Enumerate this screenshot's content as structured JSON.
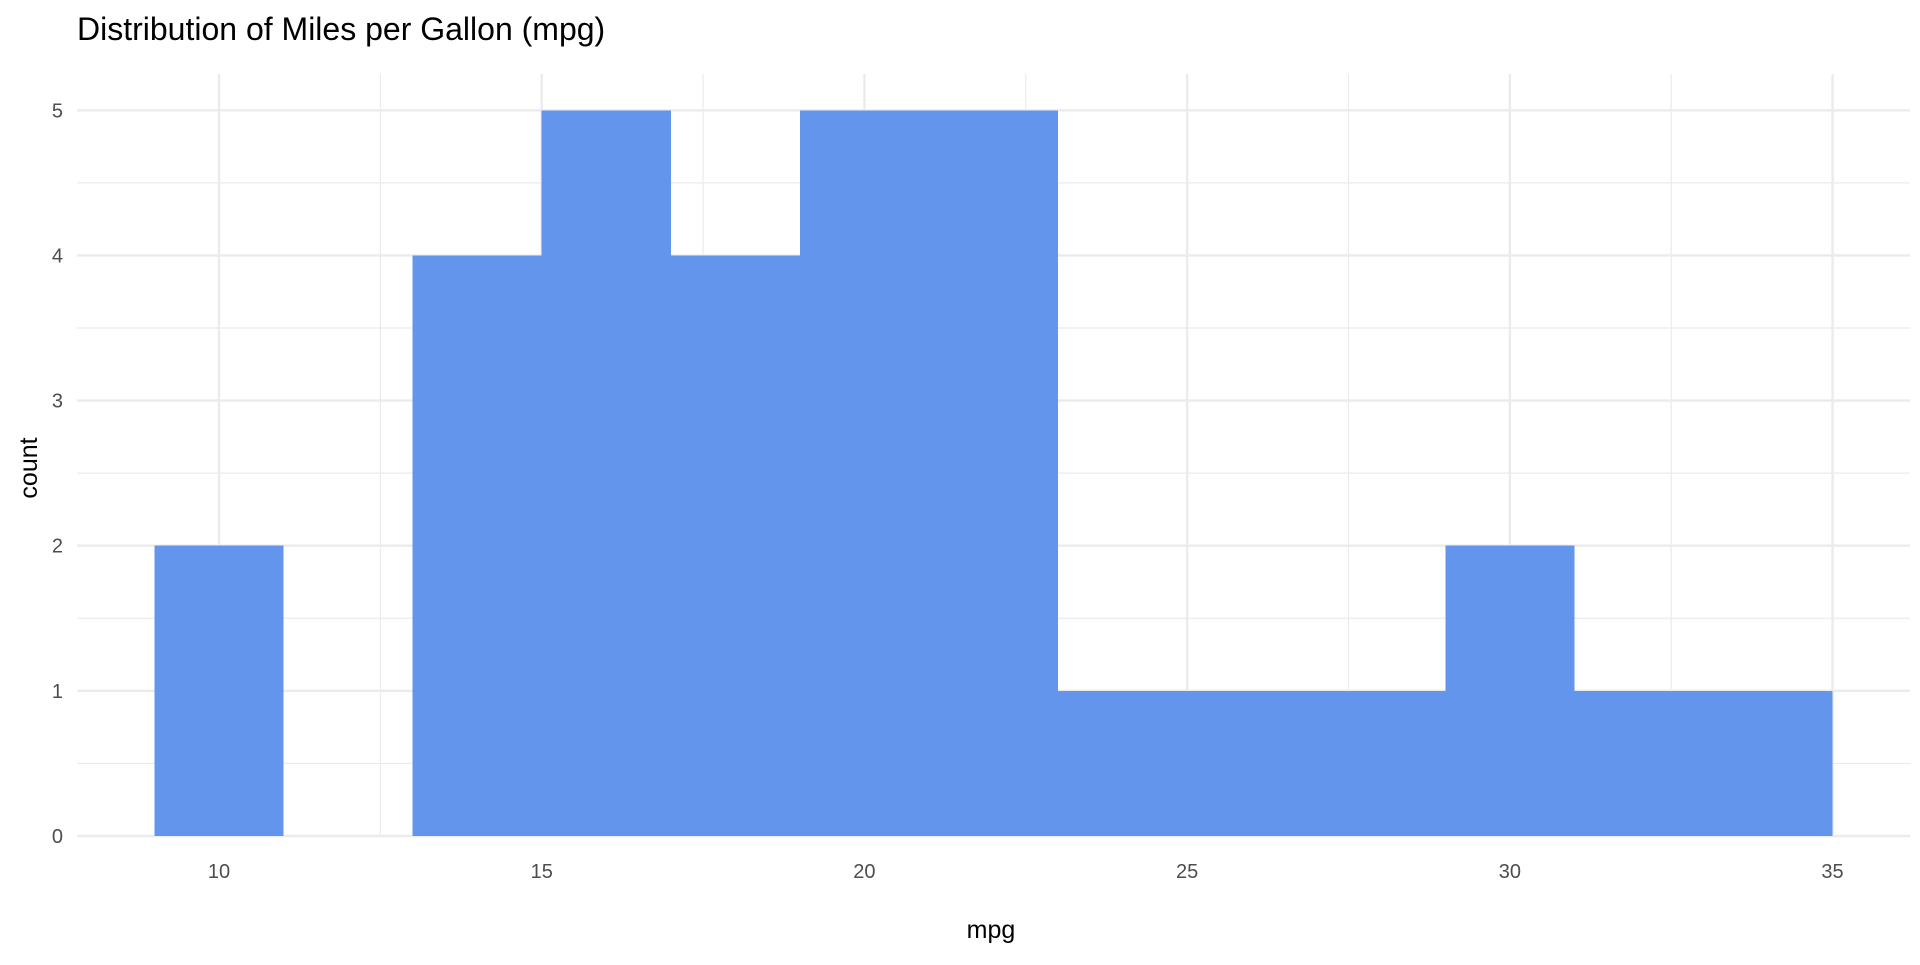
{
  "chart_data": {
    "type": "bar",
    "subtype": "histogram",
    "title": "Distribution of Miles per Gallon (mpg)",
    "xlabel": "mpg",
    "ylabel": "count",
    "xlim": [
      7.8,
      36.2
    ],
    "ylim": [
      0,
      5.25
    ],
    "x_ticks": [
      10,
      15,
      20,
      25,
      30,
      35
    ],
    "x_minor_ticks": [
      7.5,
      12.5,
      17.5,
      22.5,
      27.5,
      32.5
    ],
    "y_ticks": [
      0,
      1,
      2,
      3,
      4,
      5
    ],
    "y_minor_ticks": [
      0.5,
      1.5,
      2.5,
      3.5,
      4.5
    ],
    "grid": true,
    "bar_color": "#6495ED",
    "bins": [
      {
        "x0": 9,
        "x1": 11,
        "count": 2
      },
      {
        "x0": 11,
        "x1": 13,
        "count": 0
      },
      {
        "x0": 13,
        "x1": 15,
        "count": 4
      },
      {
        "x0": 15,
        "x1": 17,
        "count": 5
      },
      {
        "x0": 17,
        "x1": 19,
        "count": 4
      },
      {
        "x0": 19,
        "x1": 21,
        "count": 5
      },
      {
        "x0": 21,
        "x1": 23,
        "count": 5
      },
      {
        "x0": 23,
        "x1": 25,
        "count": 1
      },
      {
        "x0": 25,
        "x1": 27,
        "count": 1
      },
      {
        "x0": 27,
        "x1": 29,
        "count": 1
      },
      {
        "x0": 29,
        "x1": 31,
        "count": 2
      },
      {
        "x0": 31,
        "x1": 33,
        "count": 1
      },
      {
        "x0": 33,
        "x1": 35,
        "count": 1
      }
    ]
  }
}
